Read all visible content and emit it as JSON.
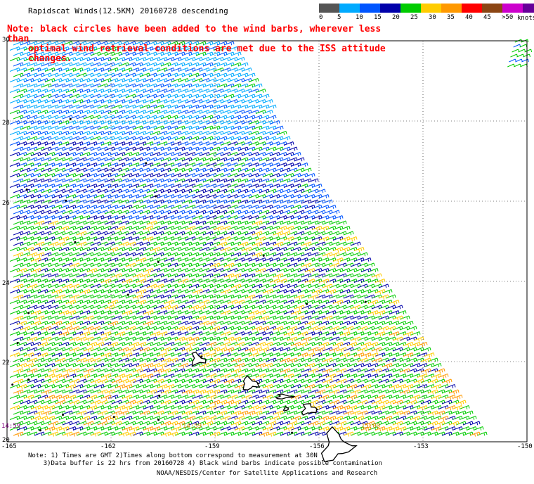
{
  "title": "Rapidscat Winds(12.5KM) 20160728 descending",
  "note": {
    "line1": "Note: black circles have been added to the wind barbs, wherever less than",
    "line2": "optimal wind retrieval conditions are met due to the ISS attitude changes."
  },
  "legend": {
    "colors": [
      "#555555",
      "#00aaff",
      "#0055ff",
      "#0000aa",
      "#00cc00",
      "#ffcc00",
      "#ff9900",
      "#ff0000",
      "#8b4513",
      "#cc00cc",
      "#660099"
    ],
    "labels": [
      "0",
      "5",
      "10",
      "15",
      "20",
      "25",
      "30",
      "35",
      "40",
      "45",
      ">50"
    ],
    "units": "knots"
  },
  "lat_labels": [
    "30",
    "28",
    "26",
    "24",
    "22",
    "20"
  ],
  "lon_labels": [
    "-165",
    "-162",
    "-159",
    "-156",
    "-153",
    "-150"
  ],
  "times": {
    "left": "14:59",
    "center": "14:59",
    "right": "15:00"
  },
  "footnote": {
    "line1": "Note: 1) Times are GMT 2)Times along bottom correspond to measurement at 30N",
    "line2": "3)Data buffer is 22 hrs from 20160728 4) Black wind barbs indicate possible contamination"
  },
  "credit": "NOAA/NESDIS/Center for Satellite Applications and Research",
  "map_data": {
    "lon_range": [
      -165,
      -150
    ],
    "lat_range": [
      20,
      30
    ],
    "grid_lons": [
      -162,
      -159,
      -156,
      -153
    ],
    "grid_lats": [
      28,
      26,
      24,
      22
    ],
    "swath_edge_lon_at_30N": -158.8,
    "swath_edge_lon_at_20N": -151.2,
    "islands": [
      {
        "name": "Kauai",
        "center": [
          -159.5,
          22.05
        ],
        "size": [
          0.45,
          0.35
        ]
      },
      {
        "name": "Oahu",
        "center": [
          -158.0,
          21.45
        ],
        "size": [
          0.55,
          0.35
        ]
      },
      {
        "name": "Molokai",
        "center": [
          -157.0,
          21.13
        ],
        "size": [
          0.55,
          0.12
        ]
      },
      {
        "name": "Maui",
        "center": [
          -156.3,
          20.8
        ],
        "size": [
          0.45,
          0.3
        ]
      },
      {
        "name": "Lanai",
        "center": [
          -156.95,
          20.82
        ],
        "size": [
          0.15,
          0.12
        ]
      },
      {
        "name": "Hawaii",
        "center": [
          -155.5,
          19.9
        ],
        "size": [
          1.0,
          0.9
        ]
      }
    ],
    "barb_direction": "northeasterly trade winds"
  }
}
